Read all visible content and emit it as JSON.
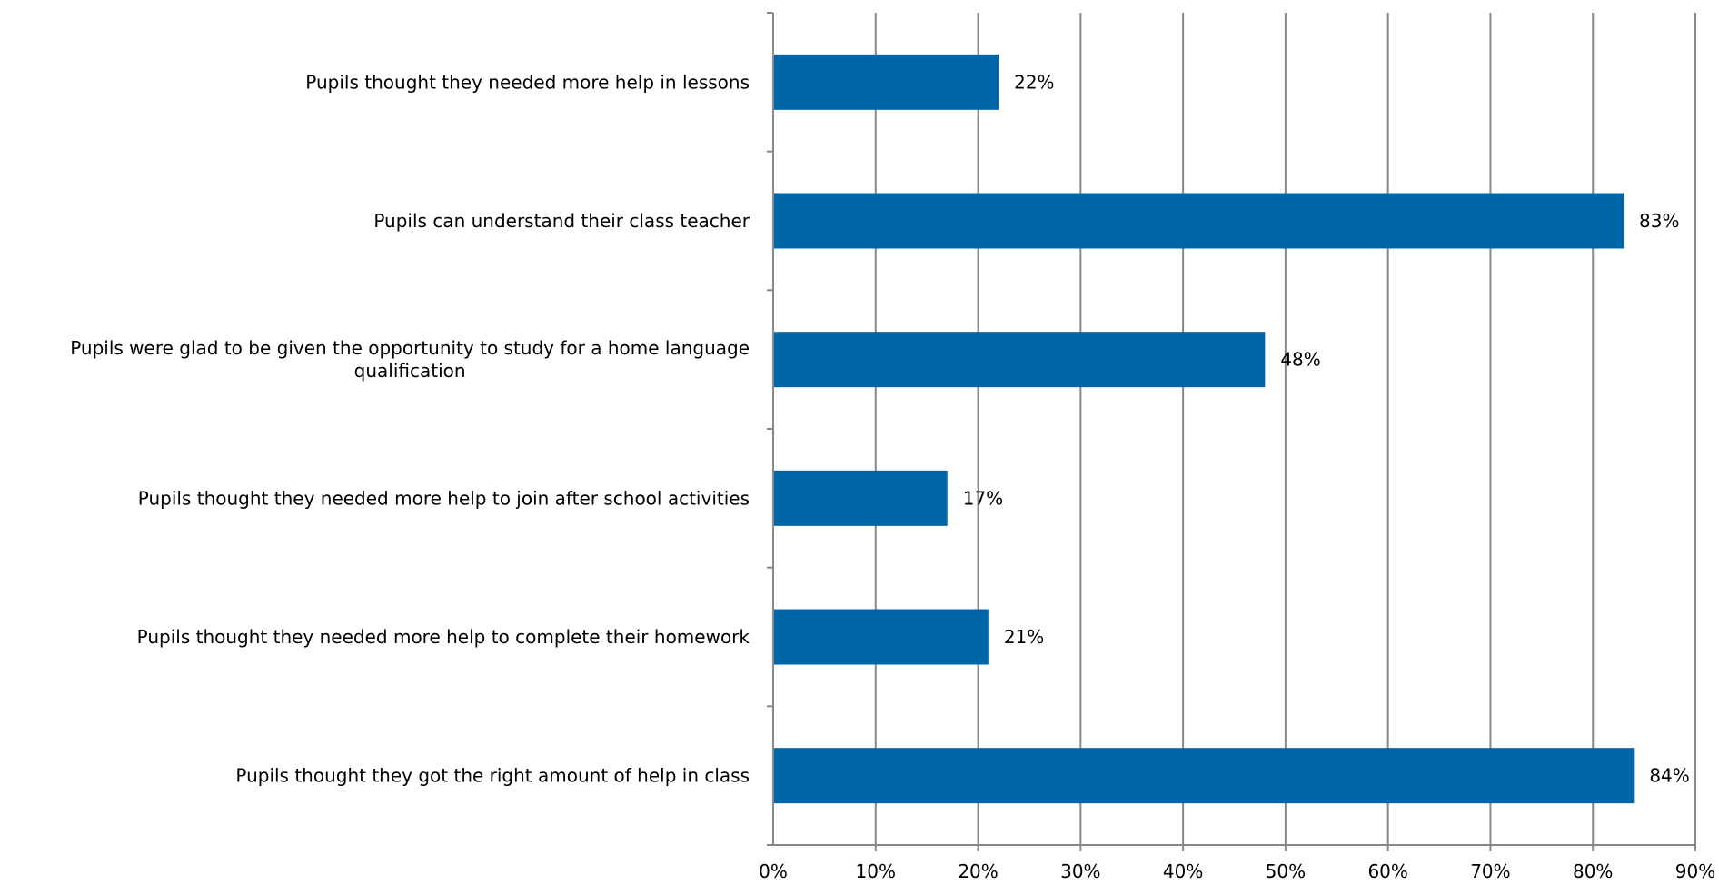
{
  "chart_data": {
    "type": "bar",
    "orientation": "horizontal",
    "title": "",
    "xlabel": "",
    "ylabel": "",
    "categories": [
      [
        "Pupils thought they needed more help in lessons"
      ],
      [
        "Pupils can understand their class teacher"
      ],
      [
        "Pupils were glad to be given the opportunity to study for a home language",
        "qualification"
      ],
      [
        "Pupils thought they needed more help to join after school activities"
      ],
      [
        "Pupils thought they needed more help to complete their homework"
      ],
      [
        "Pupils thought they got the right amount of help in class"
      ]
    ],
    "values": [
      22,
      83,
      48,
      17,
      21,
      84
    ],
    "data_labels": [
      "22%",
      "83%",
      "48%",
      "17%",
      "21%",
      "84%"
    ],
    "xlim": [
      0,
      90
    ],
    "ticks": [
      0,
      10,
      20,
      30,
      40,
      50,
      60,
      70,
      80,
      90
    ],
    "tick_labels": [
      "0%",
      "10%",
      "20%",
      "30%",
      "40%",
      "50%",
      "60%",
      "70%",
      "80%",
      "90%"
    ],
    "grid": "vertical",
    "legend": "none",
    "colors": {
      "bar": "#0066AA",
      "grid": "#888888",
      "axis": "#888888"
    }
  }
}
